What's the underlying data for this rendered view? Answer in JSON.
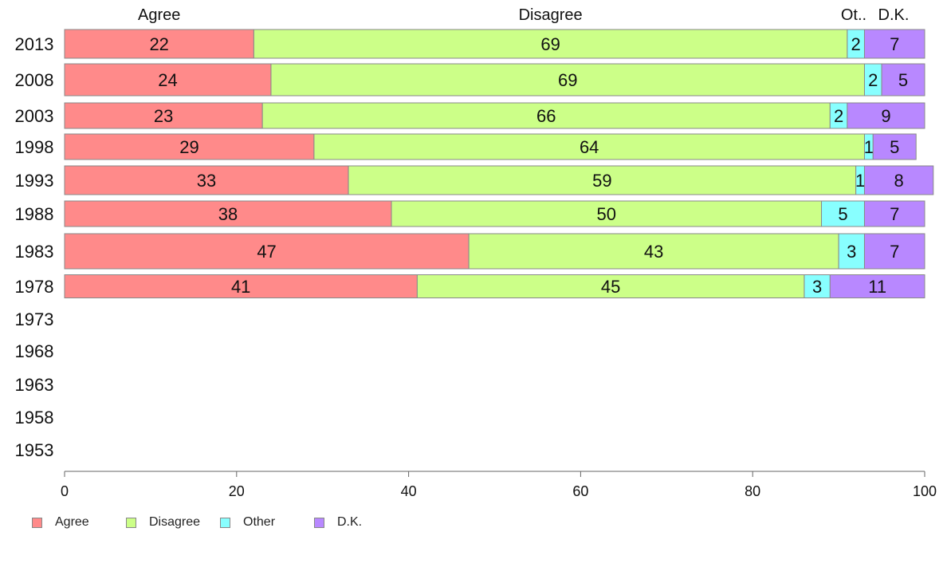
{
  "chart_data": {
    "type": "bar",
    "orientation": "horizontal",
    "stacked": true,
    "categories": [
      "2013",
      "2008",
      "2003",
      "1998",
      "1993",
      "1988",
      "1983",
      "1978",
      "1973",
      "1968",
      "1963",
      "1958",
      "1953"
    ],
    "series": [
      {
        "name": "Agree",
        "color": "#ff8a8a",
        "values": [
          22,
          24,
          23,
          29,
          33,
          38,
          47,
          41,
          null,
          null,
          null,
          null,
          null
        ]
      },
      {
        "name": "Disagree",
        "color": "#ccff88",
        "values": [
          69,
          69,
          66,
          64,
          59,
          50,
          43,
          45,
          null,
          null,
          null,
          null,
          null
        ]
      },
      {
        "name": "Other",
        "color": "#88ffff",
        "values": [
          2,
          2,
          2,
          1,
          1,
          5,
          3,
          3,
          null,
          null,
          null,
          null,
          null
        ]
      },
      {
        "name": "D.K.",
        "color": "#b888ff",
        "values": [
          7,
          5,
          9,
          5,
          8,
          7,
          7,
          11,
          null,
          null,
          null,
          null,
          null
        ]
      }
    ],
    "column_headers": [
      "Agree",
      "Disagree",
      "Ot..",
      "D.K."
    ],
    "xlim": [
      0,
      100
    ],
    "xticks": [
      "0",
      "20",
      "40",
      "60",
      "80",
      "100"
    ],
    "grid": false,
    "legend_position": "bottom-left"
  }
}
